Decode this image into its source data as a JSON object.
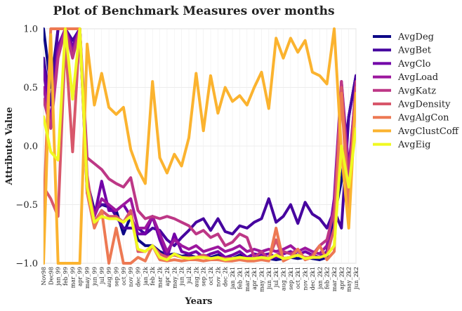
{
  "chart_data": {
    "type": "line",
    "title": "Plot of Benchmark Measures over months",
    "xlabel": "Years",
    "ylabel": "Attribute Value",
    "ylim": [
      -1.0,
      1.0
    ],
    "yticks": [
      "1.0",
      "0.5",
      "0.0",
      "−0.5",
      "−1.0"
    ],
    "ytick_values": [
      1.0,
      0.5,
      0.0,
      -0.5,
      -1.0
    ],
    "grid": true,
    "legend_placement": "outside-right",
    "categories": [
      "Nov98",
      "Dec98",
      "jan_99",
      "feb_99",
      "mar_99",
      "apr_99",
      "may_99",
      "jun_99",
      "jul_99",
      "aug_99",
      "sep_99",
      "oct_99",
      "nov_99",
      "dec_99",
      "jan_2k",
      "feb_2k",
      "mar_2k",
      "apr_2k",
      "may_2k",
      "jun_2k",
      "jul_2k",
      "aug_2k",
      "sep_2k",
      "oct_2k",
      "nov_2k",
      "dec_2k",
      "jan_2k1",
      "feb_2k1",
      "mar_2k1",
      "apr_2k1",
      "may_2k1",
      "jun_2k1",
      "jul_2k1",
      "aug_2k1",
      "sep_2k1",
      "oct_2k1",
      "nov_2k1",
      "dec_2k1",
      "jan_2k2",
      "feb_2k2",
      "mar_2k2",
      "apr_2k2",
      "may_2k2",
      "jun_2k2"
    ],
    "series": [
      {
        "name": "AvgDeg",
        "color": "#0d0887",
        "values": [
          1.0,
          0.5,
          1.0,
          1.0,
          1.0,
          1.0,
          -0.3,
          -0.55,
          -0.5,
          -0.52,
          -0.55,
          -0.75,
          -0.6,
          -0.8,
          -0.85,
          -0.85,
          -0.9,
          -0.93,
          -0.92,
          -0.94,
          -0.93,
          -0.95,
          -0.93,
          -0.95,
          -0.93,
          -0.95,
          -0.96,
          -0.93,
          -0.95,
          -0.96,
          -0.94,
          -0.96,
          -0.97,
          -0.96,
          -0.95,
          -0.96,
          -0.95,
          -0.96,
          -0.97,
          -0.95,
          -0.6,
          -0.3,
          0.25,
          0.6
        ]
      },
      {
        "name": "AvgBet",
        "color": "#46039f",
        "values": [
          0.75,
          0.35,
          1.0,
          1.0,
          0.9,
          1.0,
          -0.4,
          -0.55,
          -0.5,
          -0.5,
          -0.6,
          -0.7,
          -0.7,
          -0.7,
          -0.75,
          -0.7,
          -0.72,
          -0.8,
          -0.85,
          -0.78,
          -0.72,
          -0.65,
          -0.62,
          -0.72,
          -0.62,
          -0.73,
          -0.75,
          -0.68,
          -0.7,
          -0.65,
          -0.62,
          -0.45,
          -0.65,
          -0.6,
          -0.5,
          -0.66,
          -0.48,
          -0.58,
          -0.62,
          -0.7,
          -0.55,
          -0.7,
          0.25,
          0.6
        ]
      },
      {
        "name": "AvgClo",
        "color": "#7201a8",
        "values": [
          0.65,
          0.2,
          0.85,
          1.0,
          0.85,
          1.0,
          -0.3,
          -0.6,
          -0.3,
          -0.55,
          -0.55,
          -0.5,
          -0.6,
          -0.75,
          -0.75,
          -0.6,
          -0.8,
          -0.95,
          -0.75,
          -0.9,
          -0.92,
          -0.9,
          -0.95,
          -0.92,
          -0.9,
          -0.95,
          -0.93,
          -0.9,
          -0.95,
          -0.92,
          -0.93,
          -0.92,
          -0.95,
          -0.92,
          -0.9,
          -0.93,
          -0.9,
          -0.93,
          -0.95,
          -0.9,
          -0.45,
          0.55,
          -0.2,
          0.5
        ]
      },
      {
        "name": "AvgLoad",
        "color": "#9c179e",
        "values": [
          0.5,
          0.2,
          0.8,
          1.0,
          0.8,
          1.0,
          -0.35,
          -0.6,
          -0.45,
          -0.5,
          -0.55,
          -0.5,
          -0.45,
          -0.7,
          -0.7,
          -0.6,
          -0.75,
          -0.9,
          -0.8,
          -0.85,
          -0.88,
          -0.85,
          -0.9,
          -0.88,
          -0.86,
          -0.9,
          -0.88,
          -0.85,
          -0.9,
          -0.88,
          -0.9,
          -0.88,
          -0.9,
          -0.88,
          -0.85,
          -0.9,
          -0.87,
          -0.9,
          -0.92,
          -0.85,
          -0.5,
          0.5,
          -0.25,
          0.5
        ]
      },
      {
        "name": "AvgKatz",
        "color": "#bd3786",
        "values": [
          0.4,
          0.15,
          0.75,
          1.0,
          0.75,
          1.0,
          -0.1,
          -0.15,
          -0.2,
          -0.28,
          -0.32,
          -0.35,
          -0.27,
          -0.55,
          -0.62,
          -0.6,
          -0.62,
          -0.6,
          -0.62,
          -0.65,
          -0.68,
          -0.75,
          -0.72,
          -0.78,
          -0.75,
          -0.85,
          -0.82,
          -0.75,
          -0.78,
          -0.95,
          -0.9,
          -0.97,
          -0.93,
          -0.9,
          -0.92,
          -0.88,
          -0.97,
          -0.93,
          -0.85,
          -0.8,
          -0.55,
          0.55,
          -0.3,
          0.55
        ]
      },
      {
        "name": "AvgDensity",
        "color": "#d8576b",
        "values": [
          -0.35,
          -0.45,
          -0.6,
          0.9,
          -0.05,
          1.0,
          -0.25,
          -0.65,
          -0.55,
          -0.6,
          -0.6,
          -0.65,
          -0.55,
          -0.9,
          -0.9,
          -0.85,
          -0.92,
          -0.95,
          -0.93,
          -0.95,
          -0.95,
          -0.95,
          -0.93,
          -0.96,
          -0.95,
          -0.96,
          -0.96,
          -0.95,
          -0.96,
          -0.96,
          -0.95,
          -0.96,
          -0.8,
          -0.96,
          -0.95,
          -0.93,
          -0.95,
          -0.95,
          -0.95,
          -0.93,
          -0.7,
          0.5,
          -0.5,
          0.5
        ]
      },
      {
        "name": "AvgAlgCon",
        "color": "#ed7953",
        "values": [
          -0.6,
          1.0,
          1.0,
          1.0,
          1.0,
          1.0,
          -0.4,
          -0.7,
          -0.55,
          -1.0,
          -0.7,
          -1.0,
          -1.0,
          -0.95,
          -0.98,
          -0.85,
          -0.97,
          -0.98,
          -0.97,
          -0.98,
          -0.97,
          -0.97,
          -0.98,
          -0.97,
          -0.97,
          -0.98,
          -0.98,
          -0.97,
          -0.98,
          -0.98,
          -0.97,
          -0.98,
          -0.7,
          -0.98,
          -0.95,
          -0.88,
          -0.97,
          -0.95,
          -0.85,
          -0.97,
          -0.9,
          0.45,
          -0.6,
          0.45
        ]
      },
      {
        "name": "AvgClustCoff",
        "color": "#fbb32f",
        "values": [
          -1.0,
          0.95,
          -1.0,
          -1.0,
          -1.0,
          -1.0,
          0.87,
          0.35,
          0.62,
          0.33,
          0.27,
          0.33,
          -0.03,
          -0.2,
          -0.32,
          0.55,
          -0.1,
          -0.23,
          -0.07,
          -0.17,
          0.07,
          0.62,
          0.13,
          0.6,
          0.28,
          0.5,
          0.38,
          0.43,
          0.35,
          0.5,
          0.63,
          0.32,
          0.92,
          0.75,
          0.92,
          0.8,
          0.9,
          0.63,
          0.6,
          0.53,
          1.0,
          -0.05,
          -0.7,
          0.45
        ]
      },
      {
        "name": "AvgEig",
        "color": "#f0f921",
        "values": [
          0.25,
          -0.05,
          -0.12,
          1.0,
          0.4,
          1.0,
          -0.35,
          -0.65,
          -0.6,
          -0.62,
          -0.62,
          -0.65,
          -0.6,
          -0.88,
          -0.9,
          -0.85,
          -0.95,
          -0.97,
          -0.92,
          -0.95,
          -0.96,
          -0.95,
          -0.95,
          -0.96,
          -0.95,
          -0.97,
          -0.96,
          -0.95,
          -0.96,
          -0.96,
          -0.95,
          -0.96,
          -0.93,
          -0.96,
          -0.95,
          -0.93,
          -0.96,
          -0.95,
          -0.95,
          -0.93,
          -0.85,
          0.0,
          -0.35,
          0.15
        ]
      }
    ]
  }
}
